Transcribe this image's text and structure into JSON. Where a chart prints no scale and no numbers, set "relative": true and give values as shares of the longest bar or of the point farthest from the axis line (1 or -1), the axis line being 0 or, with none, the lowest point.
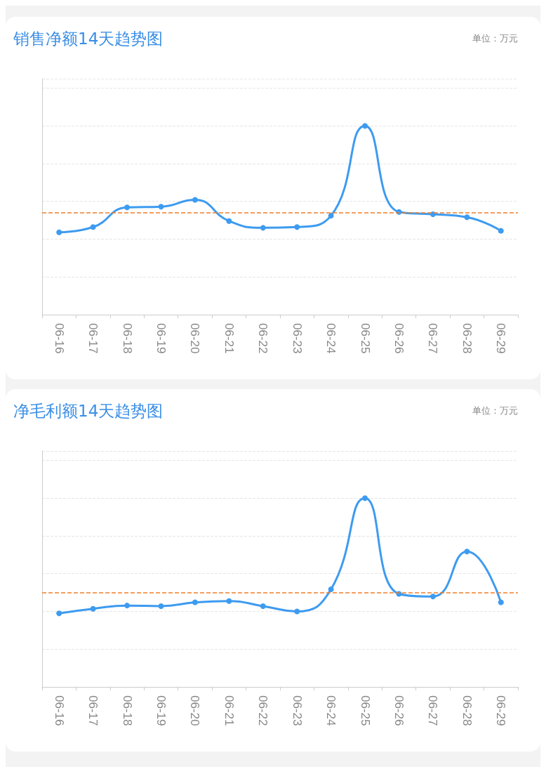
{
  "chart_data": [
    {
      "type": "line",
      "title": "销售净额14天趋势图",
      "annotations": [
        "单位：万元"
      ],
      "categories": [
        "06-16",
        "06-17",
        "06-18",
        "06-19",
        "06-20",
        "06-21",
        "06-22",
        "06-23",
        "06-24",
        "06-25",
        "06-26",
        "06-27",
        "06-28",
        "06-29"
      ],
      "relative": true,
      "tick_labels": "x",
      "grid": "y",
      "marker": "circle",
      "series": [
        {
          "color": "#3d9bf0",
          "values": [
            0.436,
            0.464,
            0.568,
            0.572,
            0.608,
            0.496,
            0.46,
            0.464,
            0.524,
            1,
            0.544,
            0.532,
            0.516,
            0.444
          ]
        }
      ],
      "ref_lines": [
        {
          "axis": "y",
          "value": 0.54,
          "color": "#f07f2a",
          "line_style": "dashed"
        }
      ]
    },
    {
      "type": "line",
      "title": "净毛利额14天趋势图",
      "annotations": [
        "单位：万元"
      ],
      "categories": [
        "06-16",
        "06-17",
        "06-18",
        "06-19",
        "06-20",
        "06-21",
        "06-22",
        "06-23",
        "06-24",
        "06-25",
        "06-26",
        "06-27",
        "06-28",
        "06-29"
      ],
      "relative": true,
      "tick_labels": "x",
      "grid": "y",
      "marker": "circle",
      "series": [
        {
          "color": "#3d9bf0",
          "values": [
            0.39,
            0.414,
            0.431,
            0.428,
            0.448,
            0.455,
            0.428,
            0.4,
            0.517,
            1,
            0.493,
            0.479,
            0.717,
            0.448
          ]
        }
      ],
      "ref_lines": [
        {
          "axis": "y",
          "value": 0.5,
          "color": "#f07f2a",
          "line_style": "dashed"
        }
      ]
    }
  ]
}
